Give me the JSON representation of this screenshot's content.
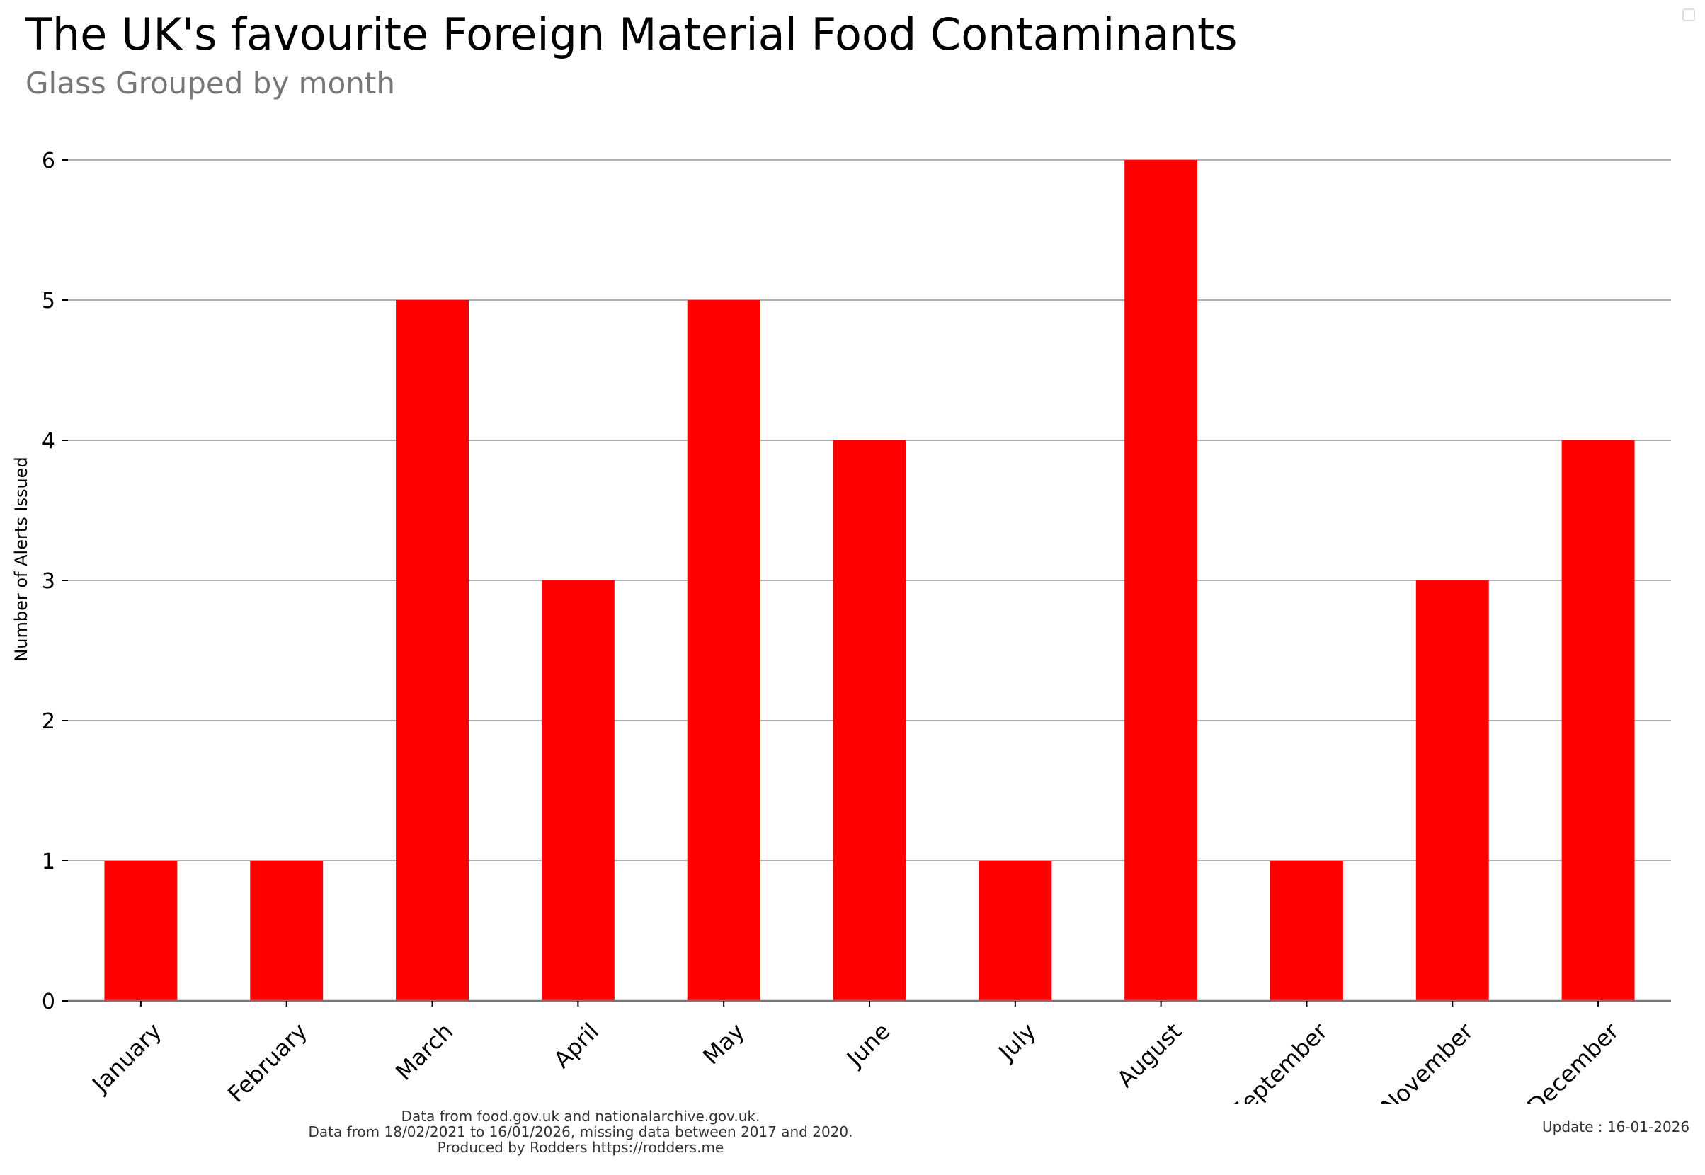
{
  "header": {
    "title": "The UK's favourite Foreign Material Food Contaminants",
    "subtitle": "Glass Grouped by month"
  },
  "footer": {
    "line1": "Data from food.gov.uk and nationalarchive.gov.uk.",
    "line2": "Data from 18/02/2021 to 16/01/2026, missing data between 2017 and 2020.",
    "line3": "Produced by Rodders https://rodders.me",
    "update": "Update : 16-01-2026"
  },
  "chart_data": {
    "type": "bar",
    "title": "The UK's favourite Foreign Material Food Contaminants",
    "subtitle": "Glass Grouped by month",
    "categories": [
      "January",
      "February",
      "March",
      "April",
      "May",
      "June",
      "July",
      "August",
      "September",
      "November",
      "December"
    ],
    "values": [
      1,
      1,
      5,
      3,
      5,
      4,
      1,
      6,
      1,
      3,
      4
    ],
    "xlabel": "",
    "ylabel": "Number of Alerts Issued",
    "ylim": [
      0,
      6
    ],
    "yticks": [
      0,
      1,
      2,
      3,
      4,
      5,
      6
    ],
    "grid": "horizontal",
    "bar_color": "#ff0000",
    "grid_color": "#999999"
  }
}
